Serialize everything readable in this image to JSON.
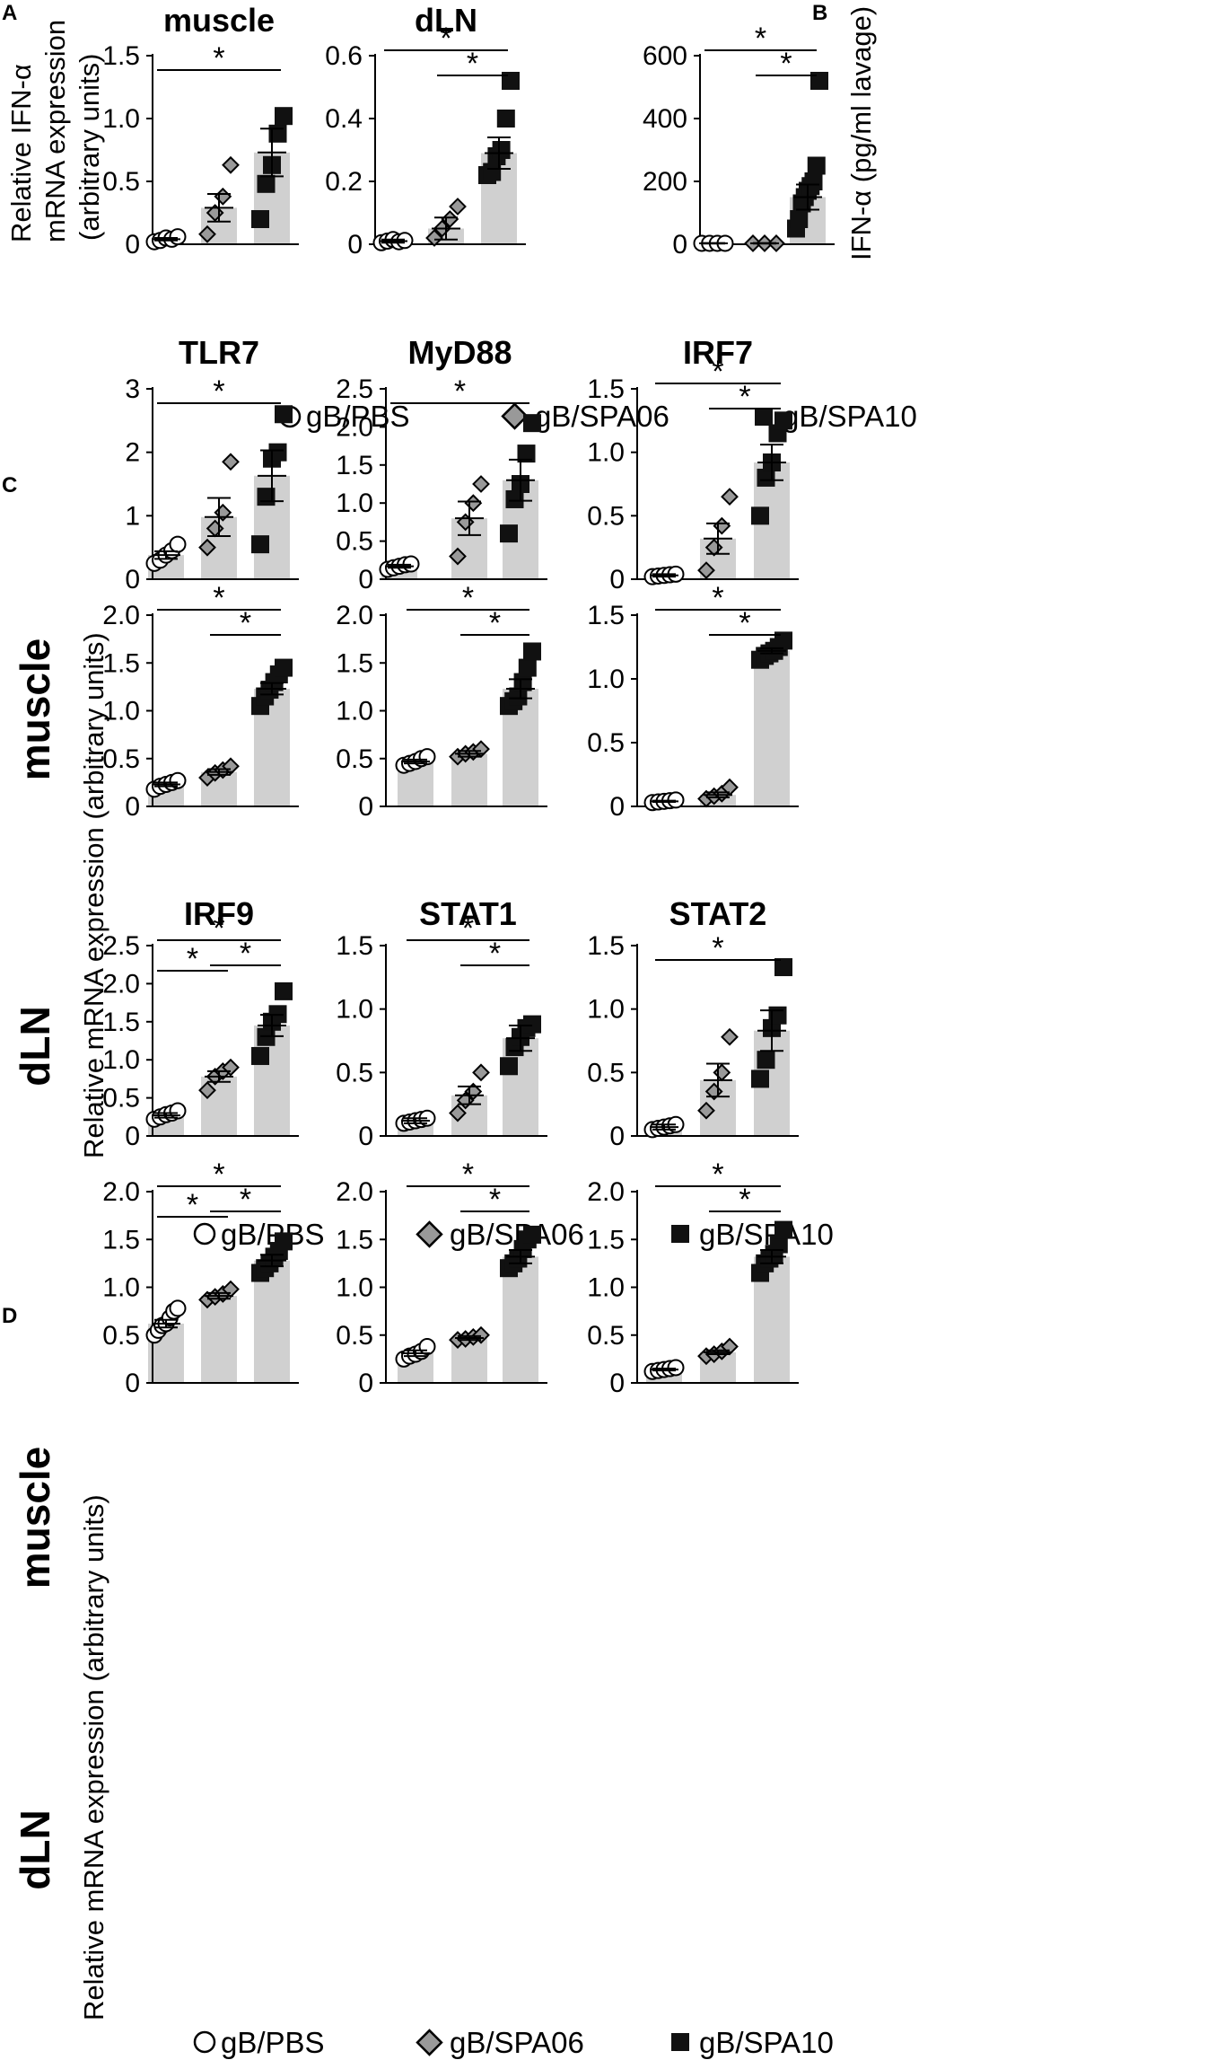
{
  "colors": {
    "bar": "#d0d0d0",
    "pbs_fill": "#ffffff",
    "spa06_fill": "#999999",
    "spa10_fill": "#111111",
    "stroke": "#000000"
  },
  "legend": [
    "gB/PBS",
    "gB/SPA06",
    "gB/SPA10"
  ],
  "panel_labels": {
    "a": "A",
    "b": "B",
    "c": "C",
    "d": "D"
  },
  "ylabels": {
    "a": [
      "Relative IFN-α",
      "mRNA expression",
      "(arbitrary units)"
    ],
    "b": "IFN-α (pg/ml lavage)",
    "c": "Relative mRNA expression (arbitrary units)",
    "d": "Relative mRNA expression (arbitrary units)"
  },
  "row_labels": {
    "c_top": "muscle",
    "c_bottom": "dLN",
    "d_top": "muscle",
    "d_bottom": "dLN"
  },
  "star_symbol": "*",
  "chart_data": [
    {
      "id": "a_muscle",
      "type": "bar",
      "title": "muscle",
      "groups": [
        "gB/PBS",
        "gB/SPA06",
        "gB/SPA10"
      ],
      "means": [
        0.04,
        0.29,
        0.73
      ],
      "sem": [
        0.01,
        0.11,
        0.19
      ],
      "points": [
        [
          0.02,
          0.03,
          0.05,
          0.04,
          0.06
        ],
        [
          0.08,
          0.25,
          0.38,
          0.63
        ],
        [
          0.2,
          0.48,
          0.63,
          0.88,
          1.02
        ]
      ],
      "yticks": [
        "0",
        "0.5",
        "1.0",
        "1.5"
      ],
      "ytick_values": [
        0,
        0.5,
        1.0,
        1.5
      ],
      "ylim": [
        0,
        1.5
      ],
      "significance": [
        [
          0,
          2
        ]
      ]
    },
    {
      "id": "a_dln",
      "type": "bar",
      "title": "dLN",
      "groups": [
        "gB/PBS",
        "gB/SPA06",
        "gB/SPA10"
      ],
      "means": [
        0.01,
        0.05,
        0.29
      ],
      "sem": [
        0.005,
        0.035,
        0.05
      ],
      "points": [
        [
          0.005,
          0.01,
          0.015,
          0.008,
          0.012
        ],
        [
          0.02,
          0.05,
          0.08,
          0.12
        ],
        [
          0.22,
          0.23,
          0.28,
          0.3,
          0.4,
          0.52
        ]
      ],
      "yticks": [
        "0",
        "0.2",
        "0.4",
        "0.6"
      ],
      "ytick_values": [
        0,
        0.2,
        0.4,
        0.6
      ],
      "ylim": [
        0,
        0.6
      ],
      "significance": [
        [
          0,
          2
        ],
        [
          1,
          2
        ]
      ]
    },
    {
      "id": "b",
      "type": "bar",
      "title": "",
      "groups": [
        "gB/PBS",
        "gB/SPA06",
        "gB/SPA10"
      ],
      "means": [
        3,
        3,
        150
      ],
      "sem": [
        1,
        1,
        40
      ],
      "points": [
        [
          3,
          3,
          3,
          3
        ],
        [
          3,
          3,
          3
        ],
        [
          50,
          80,
          130,
          150,
          170,
          185,
          200,
          250,
          520
        ]
      ],
      "yticks": [
        "0",
        "200",
        "400",
        "600"
      ],
      "ytick_values": [
        0,
        200,
        400,
        600
      ],
      "ylim": [
        0,
        600
      ],
      "significance": [
        [
          0,
          2
        ],
        [
          1,
          2
        ]
      ]
    },
    {
      "id": "c_tlr7_muscle",
      "type": "bar",
      "title": "TLR7",
      "groups": [
        "gB/PBS",
        "gB/SPA06",
        "gB/SPA10"
      ],
      "means": [
        0.38,
        0.98,
        1.63
      ],
      "sem": [
        0.06,
        0.3,
        0.4
      ],
      "points": [
        [
          0.25,
          0.3,
          0.38,
          0.45,
          0.55
        ],
        [
          0.5,
          0.8,
          1.05,
          1.85
        ],
        [
          0.55,
          1.3,
          1.9,
          2.0,
          2.6
        ]
      ],
      "yticks": [
        "0",
        "1",
        "2",
        "3"
      ],
      "ytick_values": [
        0,
        1,
        2,
        3
      ],
      "ylim": [
        0,
        3
      ],
      "significance": [
        [
          0,
          2
        ]
      ]
    },
    {
      "id": "c_myd88_muscle",
      "type": "bar",
      "title": "MyD88",
      "groups": [
        "gB/PBS",
        "gB/SPA06",
        "gB/SPA10"
      ],
      "means": [
        0.17,
        0.8,
        1.3
      ],
      "sem": [
        0.02,
        0.22,
        0.27
      ],
      "points": [
        [
          0.13,
          0.15,
          0.17,
          0.19,
          0.2
        ],
        [
          0.3,
          0.75,
          1.0,
          1.25
        ],
        [
          0.6,
          1.05,
          1.25,
          1.65,
          2.05
        ]
      ],
      "yticks": [
        "0",
        "0.5",
        "1.0",
        "1.5",
        "2.0",
        "2.5"
      ],
      "ytick_values": [
        0,
        0.5,
        1.0,
        1.5,
        2.0,
        2.5
      ],
      "ylim": [
        0,
        2.5
      ],
      "significance": [
        [
          0,
          2
        ]
      ]
    },
    {
      "id": "c_irf7_muscle",
      "type": "bar",
      "title": "IRF7",
      "groups": [
        "gB/PBS",
        "gB/SPA06",
        "gB/SPA10"
      ],
      "means": [
        0.03,
        0.32,
        0.92
      ],
      "sem": [
        0.01,
        0.12,
        0.14
      ],
      "points": [
        [
          0.02,
          0.025,
          0.03,
          0.035,
          0.04
        ],
        [
          0.07,
          0.25,
          0.42,
          0.65
        ],
        [
          0.5,
          0.8,
          0.92,
          1.15,
          1.25
        ]
      ],
      "yticks": [
        "0",
        "0.5",
        "1.0",
        "1.5"
      ],
      "ytick_values": [
        0,
        0.5,
        1.0,
        1.5
      ],
      "ylim": [
        0,
        1.5
      ],
      "significance": [
        [
          0,
          2
        ],
        [
          1,
          2
        ]
      ]
    },
    {
      "id": "c_tlr7_dln",
      "type": "bar",
      "title": "",
      "groups": [
        "gB/PBS",
        "gB/SPA06",
        "gB/SPA10"
      ],
      "means": [
        0.23,
        0.36,
        1.23
      ],
      "sem": [
        0.02,
        0.03,
        0.06
      ],
      "points": [
        [
          0.18,
          0.21,
          0.23,
          0.25,
          0.27
        ],
        [
          0.3,
          0.35,
          0.38,
          0.42
        ],
        [
          1.05,
          1.15,
          1.22,
          1.3,
          1.38,
          1.45
        ]
      ],
      "yticks": [
        "0",
        "0.5",
        "1.0",
        "1.5",
        "2.0"
      ],
      "ytick_values": [
        0,
        0.5,
        1.0,
        1.5,
        2.0
      ],
      "ylim": [
        0,
        2.0
      ],
      "significance": [
        [
          0,
          2
        ],
        [
          1,
          2
        ]
      ]
    },
    {
      "id": "c_myd88_dln",
      "type": "bar",
      "title": "",
      "groups": [
        "gB/PBS",
        "gB/SPA06",
        "gB/SPA10"
      ],
      "means": [
        0.47,
        0.55,
        1.23
      ],
      "sem": [
        0.02,
        0.03,
        0.1
      ],
      "points": [
        [
          0.43,
          0.45,
          0.47,
          0.5,
          0.52
        ],
        [
          0.52,
          0.55,
          0.57,
          0.6
        ],
        [
          1.05,
          1.1,
          1.15,
          1.3,
          1.45,
          1.62
        ]
      ],
      "yticks": [
        "0",
        "0.5",
        "1.0",
        "1.5",
        "2.0"
      ],
      "ytick_values": [
        0,
        0.5,
        1.0,
        1.5,
        2.0
      ],
      "ylim": [
        0,
        2.0
      ],
      "significance": [
        [
          0,
          2
        ],
        [
          1,
          2
        ]
      ]
    },
    {
      "id": "c_irf7_dln",
      "type": "bar",
      "title": "",
      "groups": [
        "gB/PBS",
        "gB/SPA06",
        "gB/SPA10"
      ],
      "means": [
        0.04,
        0.09,
        1.22
      ],
      "sem": [
        0.005,
        0.02,
        0.02
      ],
      "points": [
        [
          0.03,
          0.035,
          0.04,
          0.045,
          0.05
        ],
        [
          0.06,
          0.08,
          0.1,
          0.15
        ],
        [
          1.15,
          1.18,
          1.2,
          1.22,
          1.25,
          1.3
        ]
      ],
      "yticks": [
        "0",
        "0.5",
        "1.0",
        "1.5"
      ],
      "ytick_values": [
        0,
        0.5,
        1.0,
        1.5
      ],
      "ylim": [
        0,
        1.5
      ],
      "significance": [
        [
          0,
          2
        ],
        [
          1,
          2
        ]
      ]
    },
    {
      "id": "d_irf9_muscle",
      "type": "bar",
      "title": "IRF9",
      "groups": [
        "gB/PBS",
        "gB/SPA06",
        "gB/SPA10"
      ],
      "means": [
        0.27,
        0.78,
        1.45
      ],
      "sem": [
        0.03,
        0.07,
        0.14
      ],
      "points": [
        [
          0.22,
          0.25,
          0.28,
          0.3,
          0.33
        ],
        [
          0.6,
          0.78,
          0.85,
          0.9
        ],
        [
          1.05,
          1.3,
          1.5,
          1.6,
          1.9
        ]
      ],
      "yticks": [
        "0",
        "0.5",
        "1.0",
        "1.5",
        "2.0",
        "2.5"
      ],
      "ytick_values": [
        0,
        0.5,
        1.0,
        1.5,
        2.0,
        2.5
      ],
      "ylim": [
        0,
        2.5
      ],
      "significance": [
        [
          0,
          2
        ],
        [
          0,
          1
        ],
        [
          1,
          2
        ]
      ]
    },
    {
      "id": "d_stat1_muscle",
      "type": "bar",
      "title": "STAT1",
      "groups": [
        "gB/PBS",
        "gB/SPA06",
        "gB/SPA10"
      ],
      "means": [
        0.12,
        0.32,
        0.77
      ],
      "sem": [
        0.02,
        0.07,
        0.1
      ],
      "points": [
        [
          0.1,
          0.11,
          0.12,
          0.13,
          0.14
        ],
        [
          0.18,
          0.28,
          0.35,
          0.5
        ],
        [
          0.55,
          0.7,
          0.78,
          0.85,
          0.88
        ]
      ],
      "yticks": [
        "0",
        "0.5",
        "1.0",
        "1.5"
      ],
      "ytick_values": [
        0,
        0.5,
        1.0,
        1.5
      ],
      "ylim": [
        0,
        1.5
      ],
      "significance": [
        [
          0,
          2
        ],
        [
          1,
          2
        ]
      ]
    },
    {
      "id": "d_stat2_muscle",
      "type": "bar",
      "title": "STAT2",
      "groups": [
        "gB/PBS",
        "gB/SPA06",
        "gB/SPA10"
      ],
      "means": [
        0.07,
        0.44,
        0.83
      ],
      "sem": [
        0.02,
        0.13,
        0.16
      ],
      "points": [
        [
          0.05,
          0.06,
          0.07,
          0.08,
          0.09
        ],
        [
          0.2,
          0.35,
          0.5,
          0.78
        ],
        [
          0.45,
          0.6,
          0.85,
          0.95,
          1.33
        ]
      ],
      "yticks": [
        "0",
        "0.5",
        "1.0",
        "1.5"
      ],
      "ytick_values": [
        0,
        0.5,
        1.0,
        1.5
      ],
      "ylim": [
        0,
        1.5
      ],
      "significance": [
        [
          0,
          2
        ]
      ]
    },
    {
      "id": "d_irf9_dln",
      "type": "bar",
      "title": "",
      "groups": [
        "gB/PBS",
        "gB/SPA06",
        "gB/SPA10"
      ],
      "means": [
        0.62,
        0.91,
        1.28
      ],
      "sem": [
        0.04,
        0.03,
        0.06
      ],
      "points": [
        [
          0.5,
          0.55,
          0.6,
          0.62,
          0.68,
          0.75,
          0.78
        ],
        [
          0.87,
          0.9,
          0.93,
          0.98
        ],
        [
          1.15,
          1.2,
          1.25,
          1.32,
          1.38,
          1.48
        ]
      ],
      "yticks": [
        "0",
        "0.5",
        "1.0",
        "1.5",
        "2.0"
      ],
      "ytick_values": [
        0,
        0.5,
        1.0,
        1.5,
        2.0
      ],
      "ylim": [
        0,
        2.0
      ],
      "significance": [
        [
          0,
          2
        ],
        [
          0,
          1
        ],
        [
          1,
          2
        ]
      ]
    },
    {
      "id": "d_stat1_dln",
      "type": "bar",
      "title": "",
      "groups": [
        "gB/PBS",
        "gB/SPA06",
        "gB/SPA10"
      ],
      "means": [
        0.31,
        0.47,
        1.32
      ],
      "sem": [
        0.03,
        0.02,
        0.07
      ],
      "points": [
        [
          0.25,
          0.28,
          0.3,
          0.33,
          0.38
        ],
        [
          0.45,
          0.46,
          0.48,
          0.5
        ],
        [
          1.2,
          1.25,
          1.3,
          1.4,
          1.5,
          1.55
        ]
      ],
      "yticks": [
        "0",
        "0.5",
        "1.0",
        "1.5",
        "2.0"
      ],
      "ytick_values": [
        0,
        0.5,
        1.0,
        1.5,
        2.0
      ],
      "ylim": [
        0,
        2.0
      ],
      "significance": [
        [
          0,
          2
        ],
        [
          1,
          2
        ]
      ]
    },
    {
      "id": "d_stat2_dln",
      "type": "bar",
      "title": "",
      "groups": [
        "gB/PBS",
        "gB/SPA06",
        "gB/SPA10"
      ],
      "means": [
        0.14,
        0.32,
        1.32
      ],
      "sem": [
        0.01,
        0.02,
        0.07
      ],
      "points": [
        [
          0.12,
          0.13,
          0.14,
          0.15,
          0.16
        ],
        [
          0.28,
          0.3,
          0.33,
          0.38
        ],
        [
          1.15,
          1.25,
          1.3,
          1.35,
          1.45,
          1.6
        ]
      ],
      "yticks": [
        "0",
        "0.5",
        "1.0",
        "1.5",
        "2.0"
      ],
      "ytick_values": [
        0,
        0.5,
        1.0,
        1.5,
        2.0
      ],
      "ylim": [
        0,
        2.0
      ],
      "significance": [
        [
          0,
          2
        ],
        [
          1,
          2
        ]
      ]
    }
  ]
}
